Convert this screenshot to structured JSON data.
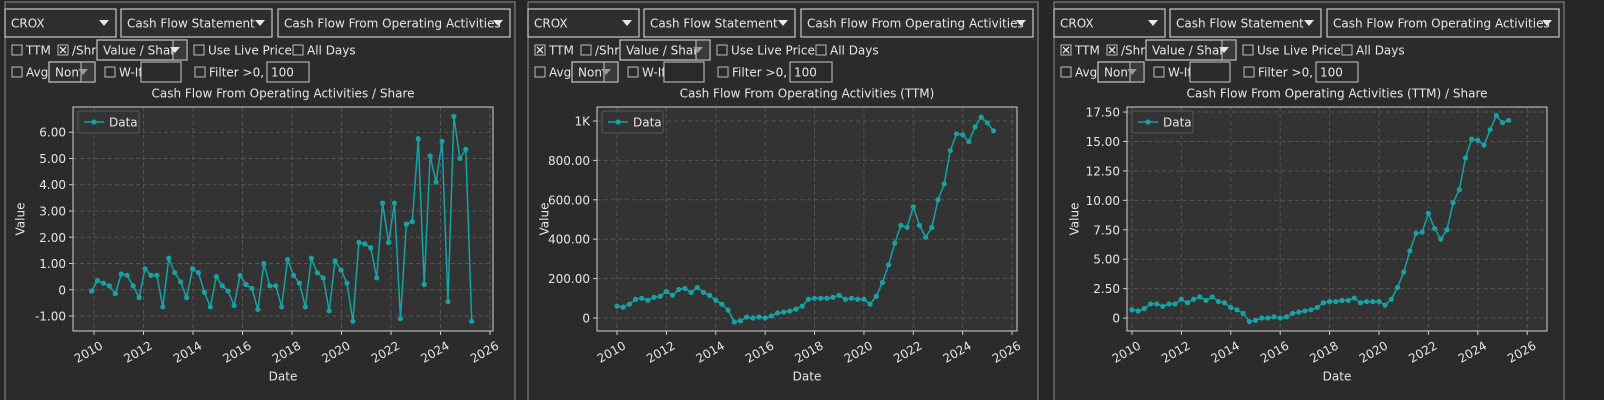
{
  "panels": [
    {
      "controls": {
        "ticker": "CROX",
        "statement": "Cash Flow Statement",
        "metric": "Cash Flow From Operating Activities",
        "ttm": {
          "label": "TTM",
          "checked": false
        },
        "per_share": {
          "label": "/Shr",
          "checked": true
        },
        "mode": {
          "text": "Value / Share",
          "enabled": true
        },
        "live_price": {
          "label": "Use Live Price",
          "checked": false,
          "enabled": false
        },
        "all_days": {
          "label": "All Days",
          "checked": false
        },
        "avg": {
          "label": "Avg",
          "checked": false
        },
        "avg_mode": {
          "text": "Non",
          "enabled": false
        },
        "what_if": {
          "label": "W-If",
          "checked": false
        },
        "filter": {
          "label": "Filter >0, <",
          "checked": false
        },
        "filter_value": 100
      }
    },
    {
      "controls": {
        "ticker": "CROX",
        "statement": "Cash Flow Statement",
        "metric": "Cash Flow From Operating Activities",
        "ttm": {
          "label": "TTM",
          "checked": true
        },
        "per_share": {
          "label": "/Shr",
          "checked": false
        },
        "mode": {
          "text": "Value / Share",
          "enabled": false
        },
        "live_price": {
          "label": "Use Live Price",
          "checked": false,
          "enabled": false
        },
        "all_days": {
          "label": "All Days",
          "checked": false
        },
        "avg": {
          "label": "Avg",
          "checked": false
        },
        "avg_mode": {
          "text": "Non",
          "enabled": false
        },
        "what_if": {
          "label": "W-If",
          "checked": false
        },
        "filter": {
          "label": "Filter >0, <",
          "checked": false
        },
        "filter_value": 100
      }
    },
    {
      "controls": {
        "ticker": "CROX",
        "statement": "Cash Flow Statement",
        "metric": "Cash Flow From Operating Activities",
        "ttm": {
          "label": "TTM",
          "checked": true
        },
        "per_share": {
          "label": "/Shr",
          "checked": true
        },
        "mode": {
          "text": "Value / Share",
          "enabled": true
        },
        "live_price": {
          "label": "Use Live Price",
          "checked": false,
          "enabled": false
        },
        "all_days": {
          "label": "All Days",
          "checked": false
        },
        "avg": {
          "label": "Avg",
          "checked": false
        },
        "avg_mode": {
          "text": "Non",
          "enabled": false
        },
        "what_if": {
          "label": "W-If",
          "checked": false
        },
        "filter": {
          "label": "Filter >0, <",
          "checked": false
        },
        "filter_value": 100
      }
    }
  ],
  "chart_data": [
    {
      "type": "line",
      "title": "Cash Flow From Operating Activities / Share",
      "xlabel": "Date",
      "ylabel": "Value",
      "x": [
        2009.9,
        2010.14,
        2010.38,
        2010.62,
        2010.86,
        2011.1,
        2011.34,
        2011.58,
        2011.82,
        2012.06,
        2012.3,
        2012.54,
        2012.78,
        2013.02,
        2013.26,
        2013.5,
        2013.74,
        2013.98,
        2014.22,
        2014.46,
        2014.7,
        2014.94,
        2015.18,
        2015.42,
        2015.66,
        2015.9,
        2016.14,
        2016.38,
        2016.62,
        2016.86,
        2017.1,
        2017.34,
        2017.58,
        2017.82,
        2018.06,
        2018.3,
        2018.54,
        2018.78,
        2019.02,
        2019.26,
        2019.5,
        2019.74,
        2019.98,
        2020.22,
        2020.46,
        2020.7,
        2020.94,
        2021.18,
        2021.42,
        2021.66,
        2021.9,
        2022.14,
        2022.38,
        2022.62,
        2022.86,
        2023.1,
        2023.34,
        2023.58,
        2023.82,
        2024.06,
        2024.3,
        2024.54,
        2024.78,
        2025.02,
        2025.26
      ],
      "series": [
        {
          "name": "Data",
          "color": "#17a2a4",
          "values": [
            -0.05,
            0.35,
            0.25,
            0.15,
            -0.15,
            0.6,
            0.55,
            0.15,
            -0.3,
            0.8,
            0.55,
            0.55,
            -0.65,
            1.2,
            0.65,
            0.3,
            -0.3,
            0.8,
            0.65,
            -0.1,
            -0.65,
            0.5,
            0.15,
            -0.05,
            -0.6,
            0.55,
            0.2,
            0.05,
            -0.75,
            1.0,
            0.15,
            0.15,
            -0.65,
            1.15,
            0.55,
            0.25,
            -0.65,
            1.2,
            0.65,
            0.45,
            -0.8,
            1.1,
            0.75,
            0.25,
            -1.2,
            1.8,
            1.75,
            1.6,
            0.45,
            3.3,
            1.8,
            3.3,
            -1.1,
            2.5,
            2.6,
            5.75,
            0.2,
            5.1,
            4.1,
            5.65,
            -0.45,
            6.6,
            5.0,
            5.35,
            -1.2
          ]
        }
      ],
      "xlim": [
        2009.15,
        2026.12
      ],
      "ylim": [
        -1.57,
        6.96
      ],
      "xticks": [
        2010,
        2012,
        2014,
        2016,
        2018,
        2020,
        2022,
        2024,
        2026
      ],
      "yticks": [
        {
          "value": -1,
          "label": "-1.00"
        },
        0,
        {
          "value": 1,
          "label": "1.00"
        },
        {
          "value": 2,
          "label": "2.00"
        },
        {
          "value": 3,
          "label": "3.00"
        },
        {
          "value": 4,
          "label": "4.00"
        },
        {
          "value": 5,
          "label": "5.00"
        },
        {
          "value": 6,
          "label": "6.00"
        }
      ],
      "grid": true,
      "legend": "upper left"
    },
    {
      "type": "line",
      "title": "Cash Flow From Operating Activities (TTM)",
      "xlabel": "Date",
      "ylabel": "Value",
      "x": [
        2010.0,
        2010.25,
        2010.5,
        2010.75,
        2011.0,
        2011.25,
        2011.5,
        2011.75,
        2012.0,
        2012.25,
        2012.5,
        2012.75,
        2013.0,
        2013.25,
        2013.5,
        2013.75,
        2014.0,
        2014.25,
        2014.5,
        2014.75,
        2015.0,
        2015.25,
        2015.5,
        2015.75,
        2016.0,
        2016.25,
        2016.5,
        2016.75,
        2017.0,
        2017.25,
        2017.5,
        2017.75,
        2018.0,
        2018.25,
        2018.5,
        2018.75,
        2019.0,
        2019.25,
        2019.5,
        2019.75,
        2020.0,
        2020.25,
        2020.5,
        2020.75,
        2021.0,
        2021.25,
        2021.5,
        2021.75,
        2022.0,
        2022.25,
        2022.5,
        2022.75,
        2023.0,
        2023.25,
        2023.5,
        2023.75,
        2024.0,
        2024.25,
        2024.5,
        2024.75,
        2025.0,
        2025.25
      ],
      "series": [
        {
          "name": "Data",
          "color": "#17a2a4",
          "values": [
            60,
            55,
            70,
            95,
            100,
            90,
            105,
            110,
            135,
            115,
            145,
            150,
            130,
            155,
            130,
            115,
            90,
            70,
            40,
            -20,
            -15,
            5,
            0,
            5,
            0,
            10,
            25,
            30,
            35,
            45,
            60,
            95,
            100,
            100,
            100,
            105,
            115,
            95,
            100,
            95,
            95,
            70,
            110,
            180,
            270,
            380,
            470,
            460,
            565,
            470,
            410,
            460,
            600,
            680,
            850,
            935,
            930,
            895,
            970,
            1020,
            990,
            950
          ]
        }
      ],
      "xlim": [
        2009.19,
        2026.2
      ],
      "ylim": [
        -66,
        1071
      ],
      "xticks": [
        2010,
        2012,
        2014,
        2016,
        2018,
        2020,
        2022,
        2024,
        2026
      ],
      "yticks": [
        0,
        {
          "value": 200,
          "label": "200.00"
        },
        {
          "value": 400,
          "label": "400.00"
        },
        {
          "value": 600,
          "label": "600.00"
        },
        {
          "value": 800,
          "label": "800.00"
        },
        {
          "value": 1000,
          "label": "1K"
        }
      ],
      "grid": true,
      "legend": "upper left"
    },
    {
      "type": "line",
      "title": "Cash Flow From Operating Activities (TTM) / Share",
      "xlabel": "Date",
      "ylabel": "Value",
      "x": [
        2010.0,
        2010.25,
        2010.5,
        2010.75,
        2011.0,
        2011.25,
        2011.5,
        2011.75,
        2012.0,
        2012.25,
        2012.5,
        2012.75,
        2013.0,
        2013.25,
        2013.5,
        2013.75,
        2014.0,
        2014.25,
        2014.5,
        2014.75,
        2015.0,
        2015.25,
        2015.5,
        2015.75,
        2016.0,
        2016.25,
        2016.5,
        2016.75,
        2017.0,
        2017.25,
        2017.5,
        2017.75,
        2018.0,
        2018.25,
        2018.5,
        2018.75,
        2019.0,
        2019.25,
        2019.5,
        2019.75,
        2020.0,
        2020.25,
        2020.5,
        2020.75,
        2021.0,
        2021.25,
        2021.5,
        2021.75,
        2022.0,
        2022.25,
        2022.5,
        2022.75,
        2023.0,
        2023.25,
        2023.5,
        2023.75,
        2024.0,
        2024.25,
        2024.5,
        2024.75,
        2025.0,
        2025.25
      ],
      "series": [
        {
          "name": "Data",
          "color": "#17a2a4",
          "values": [
            0.7,
            0.6,
            0.8,
            1.2,
            1.2,
            1.0,
            1.2,
            1.2,
            1.6,
            1.3,
            1.6,
            1.8,
            1.5,
            1.8,
            1.4,
            1.3,
            0.9,
            0.7,
            0.4,
            -0.3,
            -0.2,
            0.0,
            0.0,
            0.1,
            0.0,
            0.1,
            0.4,
            0.5,
            0.6,
            0.7,
            0.9,
            1.3,
            1.4,
            1.4,
            1.5,
            1.5,
            1.7,
            1.3,
            1.4,
            1.4,
            1.4,
            1.1,
            1.6,
            2.6,
            3.9,
            5.7,
            7.2,
            7.3,
            8.9,
            7.6,
            6.7,
            7.5,
            9.8,
            10.9,
            13.6,
            15.2,
            15.1,
            14.7,
            16.0,
            17.2,
            16.6,
            16.8
          ]
        }
      ],
      "xlim": [
        2009.8,
        2026.8
      ],
      "ylim": [
        -1.1,
        17.93
      ],
      "xticks": [
        2010,
        2012,
        2014,
        2016,
        2018,
        2020,
        2022,
        2024,
        2026
      ],
      "yticks": [
        0,
        {
          "value": 2.5,
          "label": "2.50"
        },
        {
          "value": 5,
          "label": "5.00"
        },
        {
          "value": 7.5,
          "label": "7.50"
        },
        {
          "value": 10,
          "label": "10.00"
        },
        {
          "value": 12.5,
          "label": "12.50"
        },
        {
          "value": 15,
          "label": "15.00"
        },
        {
          "value": 17.5,
          "label": "17.50"
        }
      ],
      "grid": true,
      "legend": "upper left"
    }
  ]
}
